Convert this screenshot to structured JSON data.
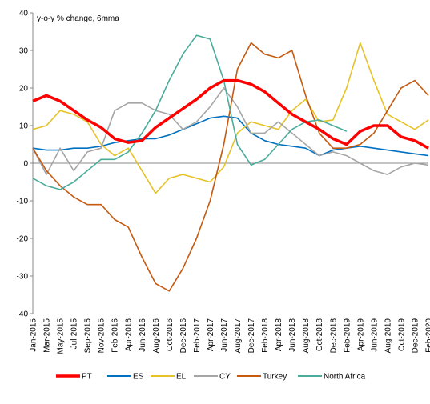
{
  "chart_data": {
    "type": "line",
    "ylabel": "y-o-y % change, 6mma",
    "categories": [
      "Jan-2015",
      "Mar-2015",
      "May-2015",
      "Jul-2015",
      "Sep-2015",
      "Nov-2015",
      "Feb-2016",
      "Apr-2016",
      "Jun-2016",
      "Aug-2016",
      "Oct-2016",
      "Dec-2016",
      "Feb-2017",
      "Apr-2017",
      "Jun-2017",
      "Aug-2017",
      "Dec-2017",
      "Feb-2018",
      "Apr-2018",
      "Jun-2018",
      "Aug-2018",
      "Oct-2018",
      "Dec-2018",
      "Feb-2019",
      "Apr-2019",
      "Jun-2019",
      "Aug-2019",
      "Oct-2019",
      "Dec-2019",
      "Feb-2020"
    ],
    "series": [
      {
        "name": "PT",
        "color": "#ff0000",
        "values": [
          16.5,
          18,
          16.5,
          14,
          11.5,
          9.5,
          6.5,
          5.5,
          6,
          9.5,
          12,
          14.5,
          17,
          20,
          22,
          22,
          21,
          19,
          16,
          13,
          11,
          9,
          6.5,
          5,
          8.5,
          10,
          10,
          7,
          6,
          4
        ]
      },
      {
        "name": "ES",
        "color": "#0070c0",
        "values": [
          4,
          3.5,
          3.5,
          4,
          4,
          4.5,
          5.5,
          6,
          6.5,
          6.5,
          7.5,
          9,
          10.5,
          12,
          12.5,
          12,
          8,
          6,
          5,
          4.5,
          4,
          2,
          3.5,
          4,
          4.5,
          4,
          3.5,
          3,
          2.5,
          2
        ]
      },
      {
        "name": "EL",
        "color": "#e6c229",
        "values": [
          9,
          10,
          14,
          13,
          11,
          5,
          2,
          4,
          -2,
          -8,
          -4,
          -3,
          -4,
          -5,
          -1,
          8,
          11,
          10,
          9,
          14,
          17,
          11,
          11.5,
          20,
          32,
          22,
          13,
          11,
          9,
          11.5
        ]
      },
      {
        "name": "CY",
        "color": "#a6a6a6",
        "values": [
          4,
          -3,
          4,
          -2,
          3,
          4,
          14,
          16,
          16,
          14,
          13,
          9,
          11,
          15,
          20,
          15,
          8,
          8,
          11,
          8,
          5,
          2,
          3,
          2,
          0,
          -2,
          -3,
          -1,
          0,
          -0.5
        ]
      },
      {
        "name": "Turkey",
        "color": "#c55a11",
        "values": [
          4,
          -2,
          -6,
          -9,
          -11,
          -11,
          -15,
          -17,
          -25,
          -32,
          -34,
          -28,
          -20,
          -10,
          5,
          25,
          32,
          29,
          28,
          30,
          18,
          8,
          4,
          4,
          5,
          8,
          14,
          20,
          22,
          18
        ]
      },
      {
        "name": "North Africa",
        "color": "#4bac9c",
        "values": [
          -4,
          -6,
          -7,
          -5,
          -2,
          1,
          1,
          3,
          8,
          14,
          22,
          29,
          34,
          33,
          22,
          5,
          -0.5,
          1,
          5,
          9,
          11,
          11.5,
          10,
          8.5,
          null,
          null,
          null,
          null,
          null,
          null
        ]
      }
    ],
    "ylim": [
      -40,
      40
    ],
    "yticks": [
      -40,
      -30,
      -20,
      -10,
      0,
      10,
      20,
      30,
      40
    ],
    "grid": false,
    "legend": "bottom"
  }
}
